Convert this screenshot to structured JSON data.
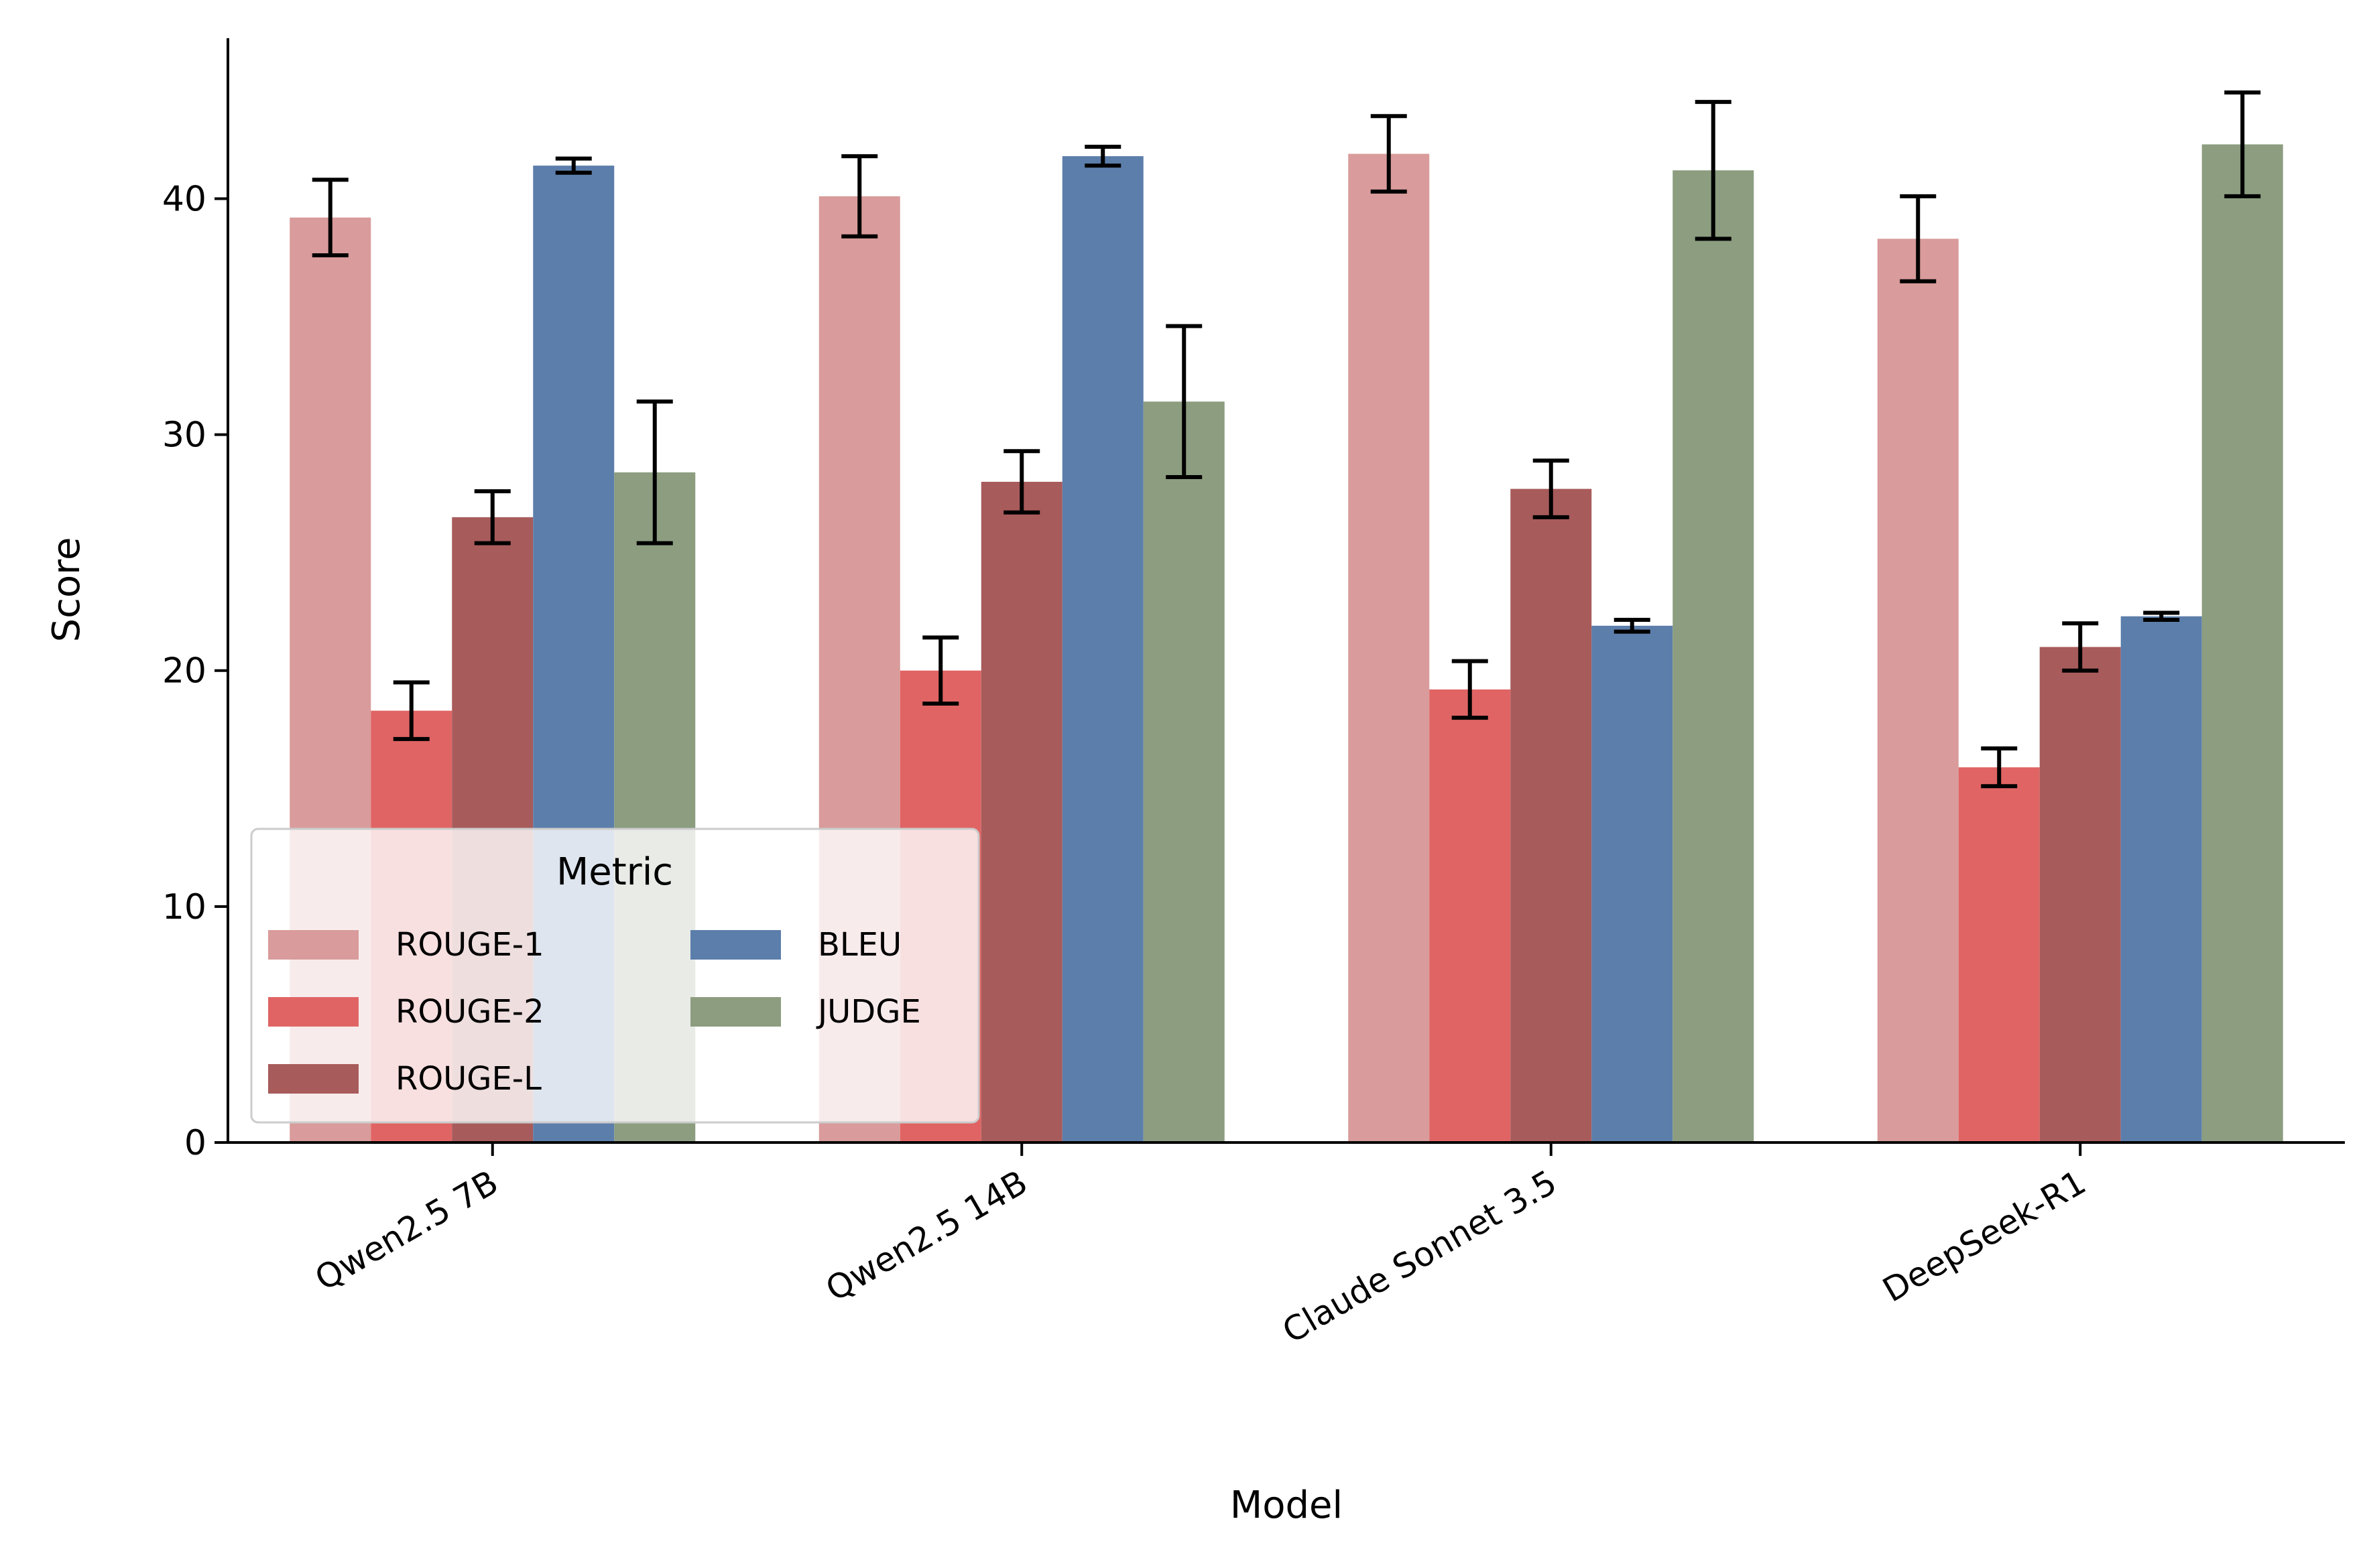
{
  "chart_data": {
    "type": "bar",
    "xlabel": "Model",
    "ylabel": "Score",
    "ylim": [
      0,
      46.8
    ],
    "yticks": [
      0,
      10,
      20,
      30,
      40
    ],
    "grid": false,
    "legend": {
      "title": "Metric",
      "placement": "lower-left",
      "columns": 2
    },
    "categories": [
      "Qwen2.5 7B",
      "Qwen2.5 14B",
      "Claude Sonnet 3.5",
      "DeepSeek-R1"
    ],
    "series": [
      {
        "name": "ROUGE-1",
        "color": "#d99b9b",
        "values": [
          39.2,
          40.1,
          41.9,
          38.3
        ],
        "errors": [
          1.6,
          1.7,
          1.6,
          1.8
        ]
      },
      {
        "name": "ROUGE-2",
        "color": "#e06464",
        "values": [
          18.3,
          20.0,
          19.2,
          15.9
        ],
        "errors": [
          1.2,
          1.4,
          1.2,
          0.8
        ]
      },
      {
        "name": "ROUGE-L",
        "color": "#a85b5b",
        "values": [
          26.5,
          28.0,
          27.7,
          21.0
        ],
        "errors": [
          1.1,
          1.3,
          1.2,
          1.0
        ]
      },
      {
        "name": "BLEU",
        "color": "#5c7eab",
        "values": [
          41.4,
          41.8,
          21.9,
          22.3
        ],
        "errors": [
          0.3,
          0.4,
          0.25,
          0.15
        ]
      },
      {
        "name": "JUDGE",
        "color": "#8c9d80",
        "values": [
          28.4,
          31.4,
          41.2,
          42.3
        ],
        "errors": [
          3.0,
          3.2,
          2.9,
          2.2
        ]
      }
    ]
  }
}
